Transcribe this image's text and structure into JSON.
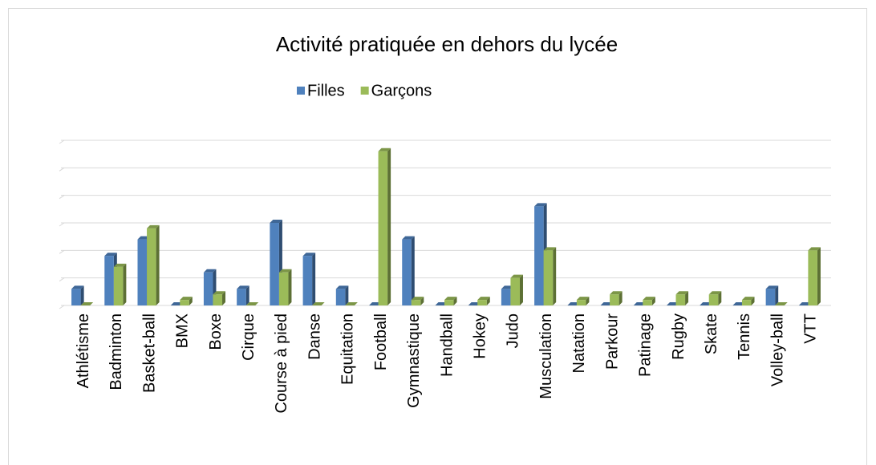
{
  "chart_data": {
    "type": "bar",
    "title": "Activité pratiquée en dehors du lycée",
    "categories": [
      "Athlétisme",
      "Badminton",
      "Basket-ball",
      "BMX",
      "Boxe",
      "Cirque",
      "Course à pied",
      "Danse",
      "Equitation",
      "Football",
      "Gymnastique",
      "Handball",
      "Hokey",
      "Judo",
      "Musculation",
      "Natation",
      "Parkour",
      "Patinage",
      "Rugby",
      "Skate",
      "Tennis",
      "Volley-ball",
      "VTT"
    ],
    "series": [
      {
        "name": "Filles",
        "color": "#4f81bd",
        "values": [
          3,
          9,
          12,
          0,
          6,
          3,
          15,
          9,
          3,
          0,
          12,
          0,
          0,
          3,
          18,
          0,
          0,
          0,
          0,
          0,
          0,
          3,
          0
        ]
      },
      {
        "name": "Garçons",
        "color": "#9bbb59",
        "values": [
          0,
          7,
          14,
          1,
          2,
          0,
          6,
          0,
          0,
          28,
          1,
          1,
          1,
          5,
          10,
          1,
          2,
          1,
          2,
          2,
          1,
          0,
          10
        ]
      }
    ],
    "ylim": [
      0,
      30
    ],
    "yticks": [
      0,
      5,
      10,
      15,
      20,
      25,
      30
    ],
    "grid": true,
    "legend": "top"
  }
}
